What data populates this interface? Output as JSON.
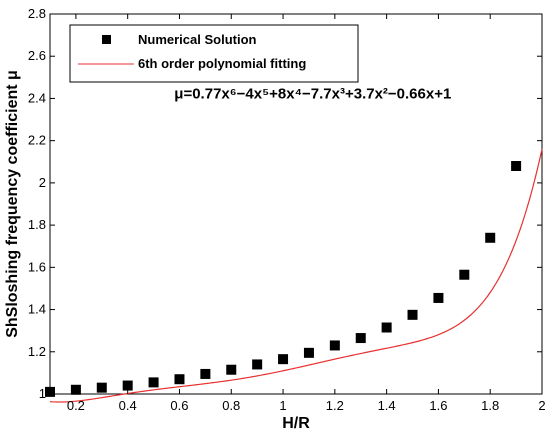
{
  "chart_data": {
    "type": "scatter",
    "title": "",
    "xlabel": "H/R",
    "ylabel": "ShSloshing frequency coefficient μ",
    "xlim": [
      0.1,
      2.0
    ],
    "ylim": [
      1.0,
      2.8
    ],
    "xticks": [
      "0.2",
      "0.4",
      "0.6",
      "0.8",
      "1",
      "1.2",
      "1.4",
      "1.6",
      "1.8",
      "2"
    ],
    "xtick_values": [
      0.2,
      0.4,
      0.6,
      0.8,
      1.0,
      1.2,
      1.4,
      1.6,
      1.8,
      2.0
    ],
    "yticks": [
      "1",
      "1.2",
      "1.4",
      "1.6",
      "1.8",
      "2",
      "2.2",
      "2.4",
      "2.6",
      "2.8"
    ],
    "ytick_values": [
      1.0,
      1.2,
      1.4,
      1.6,
      1.8,
      2.0,
      2.2,
      2.4,
      2.6,
      2.8
    ],
    "grid": false,
    "legend_position": "top-left",
    "series": [
      {
        "name": "Numerical Solution",
        "kind": "markers",
        "marker": "square",
        "color": "#000000",
        "x": [
          0.1,
          0.2,
          0.3,
          0.4,
          0.5,
          0.6,
          0.7,
          0.8,
          0.9,
          1.0,
          1.1,
          1.2,
          1.3,
          1.4,
          1.5,
          1.6,
          1.7,
          1.8,
          1.9
        ],
        "y": [
          1.01,
          1.02,
          1.03,
          1.04,
          1.055,
          1.07,
          1.095,
          1.115,
          1.14,
          1.165,
          1.195,
          1.23,
          1.265,
          1.315,
          1.375,
          1.455,
          1.565,
          1.74,
          2.08
        ]
      },
      {
        "name": "6th order polynomial fitting",
        "kind": "curve",
        "color": "#e83030",
        "coefficients": [
          1,
          -0.66,
          3.7,
          -7.7,
          8,
          -4,
          0.77
        ]
      }
    ],
    "annotations": [
      {
        "text": "μ=0.77x⁶−4x⁵+8x⁴−7.7x³+3.7x²−0.66x+1",
        "x": 0.58,
        "y": 2.4
      }
    ]
  }
}
